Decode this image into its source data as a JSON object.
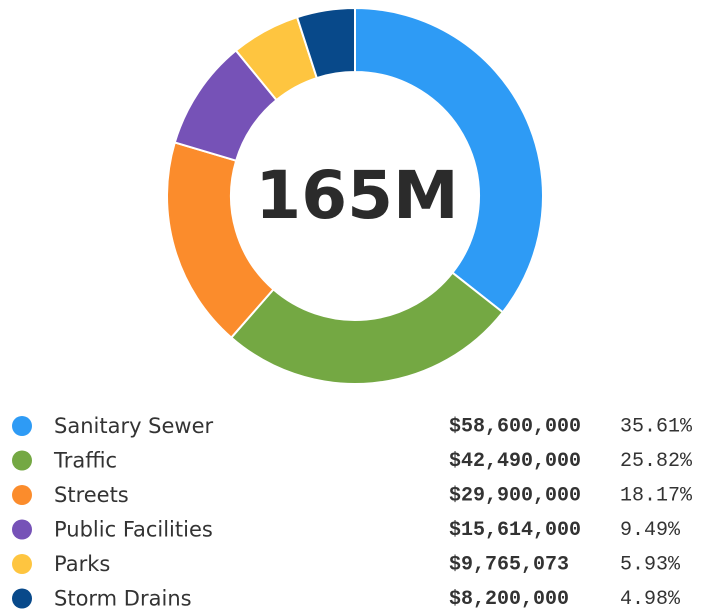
{
  "chart_data": {
    "type": "pie",
    "donut": true,
    "center_label": "165M",
    "categories": [
      "Sanitary Sewer",
      "Traffic",
      "Streets",
      "Public Facilities",
      "Parks",
      "Storm Drains"
    ],
    "values": [
      58600000,
      42490000,
      29900000,
      15614000,
      9765073,
      8200000
    ],
    "value_labels": [
      "$58,600,000",
      "$42,490,000",
      "$29,900,000",
      "$15,614,000",
      "$9,765,073",
      "$8,200,000"
    ],
    "shares": [
      35.61,
      25.82,
      18.17,
      9.49,
      5.93,
      4.98
    ],
    "share_labels": [
      "35.61%",
      "25.82%",
      "18.17%",
      "9.49%",
      "5.93%",
      "4.98%"
    ],
    "colors": [
      "#2e9bf5",
      "#74a843",
      "#fb8c2c",
      "#7652b7",
      "#fec540",
      "#08498a"
    ]
  }
}
